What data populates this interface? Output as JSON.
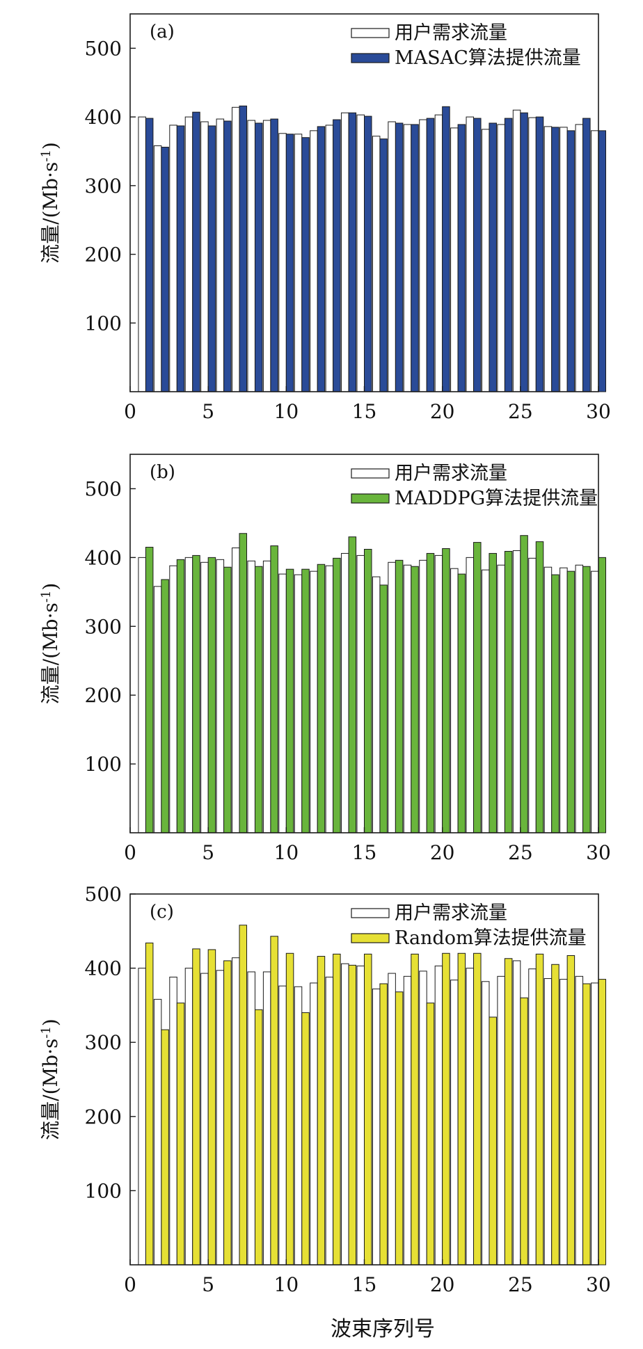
{
  "x_axis_label": "波束序列号",
  "demand_label": "用户需求流量",
  "demand": [
    400,
    358,
    388,
    400,
    393,
    397,
    414,
    395,
    395,
    376,
    375,
    380,
    388,
    406,
    403,
    372,
    393,
    389,
    396,
    403,
    384,
    400,
    382,
    389,
    410,
    399,
    386,
    385,
    389,
    380
  ],
  "colors": {
    "demand": "#ffffff",
    "MASAC": "#2a4b98",
    "MADDPG": "#69b53c",
    "Random": "#e6e035"
  },
  "chart_data": [
    {
      "type": "bar",
      "panel_label": "(a)",
      "ylabel": "流量/(Mb·s",
      "ylabel_sup": "-1",
      "ylabel_close": ")",
      "xlim": [
        0,
        30
      ],
      "ylim": [
        0,
        550
      ],
      "x_ticks": [
        0,
        5,
        10,
        15,
        20,
        25,
        30
      ],
      "y_ticks": [
        100,
        200,
        300,
        400,
        500
      ],
      "categories": [
        1,
        2,
        3,
        4,
        5,
        6,
        7,
        8,
        9,
        10,
        11,
        12,
        13,
        14,
        15,
        16,
        17,
        18,
        19,
        20,
        21,
        22,
        23,
        24,
        25,
        26,
        27,
        28,
        29,
        30
      ],
      "series": [
        {
          "name": "用户需求流量",
          "color": "#ffffff",
          "values": [
            400,
            358,
            388,
            400,
            393,
            397,
            414,
            395,
            395,
            376,
            375,
            380,
            388,
            406,
            403,
            372,
            393,
            389,
            396,
            403,
            384,
            400,
            382,
            389,
            410,
            399,
            386,
            385,
            389,
            380
          ]
        },
        {
          "name": "MASAC算法提供流量",
          "color": "#2a4b98",
          "values": [
            398,
            356,
            387,
            407,
            387,
            394,
            416,
            391,
            397,
            375,
            370,
            386,
            396,
            406,
            401,
            368,
            391,
            389,
            398,
            415,
            389,
            398,
            391,
            398,
            406,
            400,
            385,
            380,
            398,
            380
          ]
        }
      ],
      "legend_position": "top-right"
    },
    {
      "type": "bar",
      "panel_label": "(b)",
      "ylabel": "流量/(Mb·s",
      "ylabel_sup": "-1",
      "ylabel_close": ")",
      "xlim": [
        0,
        30
      ],
      "ylim": [
        0,
        550
      ],
      "x_ticks": [
        0,
        5,
        10,
        15,
        20,
        25,
        30
      ],
      "y_ticks": [
        100,
        200,
        300,
        400,
        500
      ],
      "categories": [
        1,
        2,
        3,
        4,
        5,
        6,
        7,
        8,
        9,
        10,
        11,
        12,
        13,
        14,
        15,
        16,
        17,
        18,
        19,
        20,
        21,
        22,
        23,
        24,
        25,
        26,
        27,
        28,
        29,
        30
      ],
      "series": [
        {
          "name": "用户需求流量",
          "color": "#ffffff",
          "values": [
            400,
            358,
            388,
            400,
            393,
            397,
            414,
            395,
            395,
            376,
            375,
            380,
            388,
            406,
            403,
            372,
            393,
            389,
            396,
            403,
            384,
            400,
            382,
            389,
            410,
            399,
            386,
            385,
            389,
            380
          ]
        },
        {
          "name": "MADDPG算法提供流量",
          "color": "#69b53c",
          "values": [
            415,
            368,
            397,
            403,
            400,
            386,
            435,
            387,
            417,
            383,
            383,
            390,
            399,
            430,
            412,
            360,
            396,
            387,
            406,
            413,
            376,
            422,
            406,
            409,
            432,
            423,
            375,
            380,
            387,
            400
          ]
        }
      ],
      "legend_position": "top-right"
    },
    {
      "type": "bar",
      "panel_label": "(c)",
      "ylabel": "流量/(Mb·s",
      "ylabel_sup": "-1",
      "ylabel_close": ")",
      "xlim": [
        0,
        30
      ],
      "ylim": [
        0,
        500
      ],
      "x_ticks": [
        0,
        5,
        10,
        15,
        20,
        25,
        30
      ],
      "y_ticks": [
        100,
        200,
        300,
        400,
        500
      ],
      "categories": [
        1,
        2,
        3,
        4,
        5,
        6,
        7,
        8,
        9,
        10,
        11,
        12,
        13,
        14,
        15,
        16,
        17,
        18,
        19,
        20,
        21,
        22,
        23,
        24,
        25,
        26,
        27,
        28,
        29,
        30
      ],
      "series": [
        {
          "name": "用户需求流量",
          "color": "#ffffff",
          "values": [
            400,
            358,
            388,
            400,
            393,
            397,
            414,
            395,
            395,
            376,
            375,
            380,
            388,
            406,
            403,
            372,
            393,
            389,
            396,
            403,
            384,
            400,
            382,
            389,
            410,
            399,
            386,
            385,
            389,
            380
          ]
        },
        {
          "name": "Random算法提供流量",
          "color": "#e6e035",
          "values": [
            434,
            317,
            353,
            426,
            425,
            410,
            458,
            344,
            443,
            420,
            340,
            416,
            419,
            404,
            419,
            379,
            368,
            419,
            353,
            420,
            420,
            420,
            334,
            413,
            360,
            419,
            405,
            417,
            379,
            385
          ]
        }
      ],
      "legend_position": "top-right"
    }
  ]
}
